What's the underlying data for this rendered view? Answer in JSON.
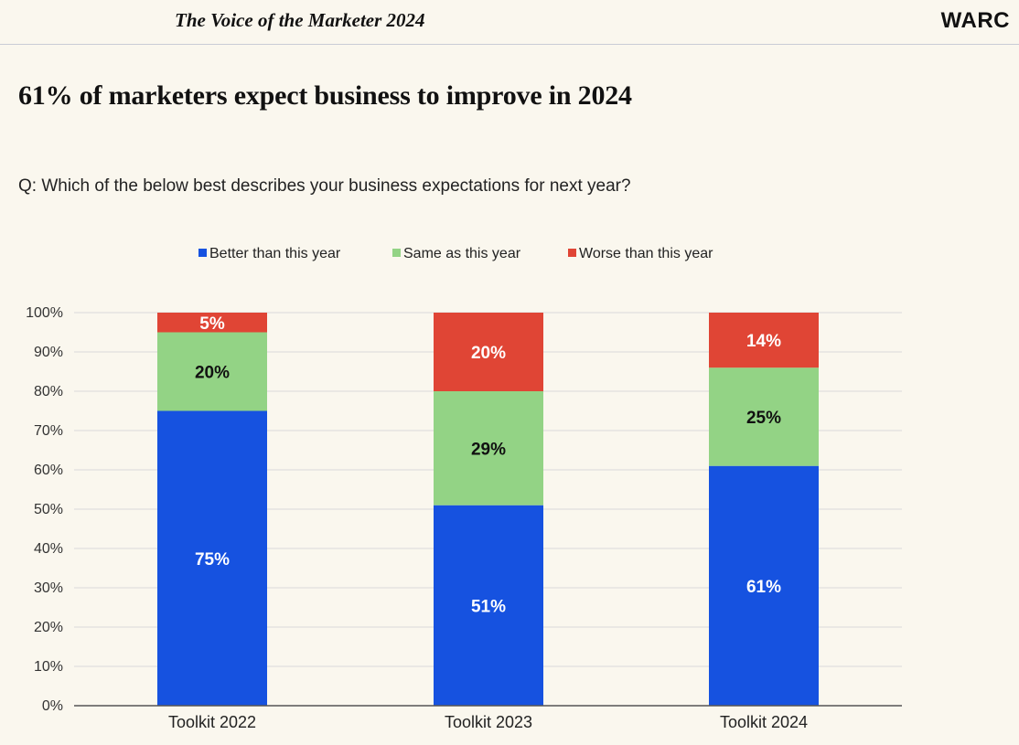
{
  "header": {
    "report_title": "The Voice of the Marketer 2024",
    "brand": "WARC"
  },
  "headline": "61% of marketers expect business to improve in 2024",
  "question": "Q: Which of the below best describes your business expectations for next year?",
  "colors": {
    "better": "#1652e0",
    "same": "#93d385",
    "worse": "#e04535",
    "grid": "#d9d9d9",
    "axis": "#555555"
  },
  "chart_data": {
    "type": "bar",
    "stacked": true,
    "categories": [
      "Toolkit 2022",
      "Toolkit 2023",
      "Toolkit 2024"
    ],
    "series": [
      {
        "name": "Better than this year",
        "values": [
          75,
          51,
          61
        ],
        "color": "#1652e0",
        "label_color": "#ffffff"
      },
      {
        "name": "Same as this year",
        "values": [
          20,
          29,
          25
        ],
        "color": "#93d385",
        "label_color": "#111111"
      },
      {
        "name": "Worse than this year",
        "values": [
          5,
          20,
          14
        ],
        "color": "#e04535",
        "label_color": "#ffffff"
      }
    ],
    "data_labels": [
      [
        "75%",
        "51%",
        "61%"
      ],
      [
        "20%",
        "29%",
        "25%"
      ],
      [
        "5%",
        "20%",
        "14%"
      ]
    ],
    "yticks": [
      "0%",
      "10%",
      "20%",
      "30%",
      "40%",
      "50%",
      "60%",
      "70%",
      "80%",
      "90%",
      "100%"
    ],
    "ylim": [
      0,
      100
    ],
    "grid": true,
    "legend_position": "top"
  }
}
